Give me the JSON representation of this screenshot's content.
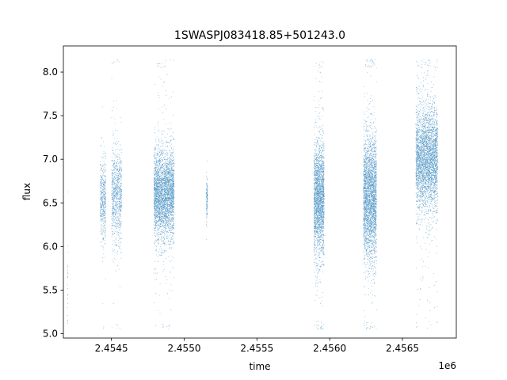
{
  "chart_data": {
    "type": "scatter",
    "title": "1SWASPJ083418.85+501243.0",
    "xlabel": "time",
    "ylabel": "flux",
    "x_offset_label": "1e6",
    "xlim": [
      2454170,
      2456870
    ],
    "ylim": [
      4.95,
      8.3
    ],
    "x_ticks": [
      2454500,
      2455000,
      2455500,
      2456000,
      2456500
    ],
    "x_tick_labels": [
      "2.4545",
      "2.4550",
      "2.4555",
      "2.4560",
      "2.4565"
    ],
    "y_ticks": [
      5.0,
      5.5,
      6.0,
      6.5,
      7.0,
      7.5,
      8.0
    ],
    "y_tick_labels": [
      "5.0",
      "5.5",
      "6.0",
      "6.5",
      "7.0",
      "7.5",
      "8.0"
    ],
    "marker_color": "#1f77b4",
    "grid": false,
    "clusters": [
      {
        "x_start": 2454195,
        "x_end": 2454200,
        "y_center": 5.55,
        "y_spread": 0.3,
        "count": 25
      },
      {
        "x_start": 2454420,
        "x_end": 2454460,
        "y_center": 6.55,
        "y_spread": 0.22,
        "count": 500
      },
      {
        "x_start": 2454500,
        "x_end": 2454570,
        "y_center": 6.6,
        "y_spread": 0.28,
        "count": 900
      },
      {
        "x_start": 2454790,
        "x_end": 2454930,
        "y_center": 6.6,
        "y_spread": 0.25,
        "count": 3500
      },
      {
        "x_start": 2455150,
        "x_end": 2455160,
        "y_center": 6.55,
        "y_spread": 0.12,
        "count": 150
      },
      {
        "x_start": 2455890,
        "x_end": 2455960,
        "y_center": 6.55,
        "y_spread": 0.32,
        "count": 2500
      },
      {
        "x_start": 2456230,
        "x_end": 2456320,
        "y_center": 6.55,
        "y_spread": 0.35,
        "count": 3200
      },
      {
        "x_start": 2456590,
        "x_end": 2456740,
        "y_center": 7.0,
        "y_spread": 0.3,
        "count": 3600
      }
    ]
  }
}
